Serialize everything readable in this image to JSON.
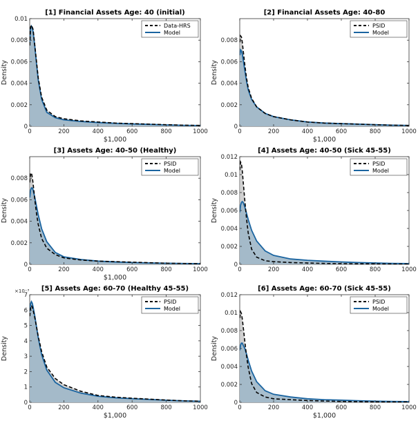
{
  "colors": {
    "data_line": "#000000",
    "data_fill": "#c8c8c8",
    "model_line": "#1a64a0",
    "model_fill": "#9fb7c8",
    "axis": "#333333"
  },
  "chart_data": [
    {
      "type": "area",
      "title": "[1] Financial Assets Age: 40 (initial)",
      "xlabel": "$1,000",
      "ylabel": "Density",
      "xlim": [
        0,
        1000
      ],
      "ylim": [
        0,
        0.01
      ],
      "xticks": [
        0,
        200,
        400,
        600,
        800,
        1000
      ],
      "yticks": [
        0,
        0.002,
        0.004,
        0.006,
        0.008,
        0.01
      ],
      "ytick_labels": [
        "0",
        "0.002",
        "0.004",
        "0.006",
        "0.008",
        "0.01"
      ],
      "exponent_label": "",
      "legend_position": "top-right",
      "grid": false,
      "series": [
        {
          "name": "Data-HRS",
          "style": "dashed",
          "x": [
            0,
            5,
            10,
            15,
            20,
            30,
            40,
            50,
            70,
            100,
            150,
            200,
            300,
            400,
            500,
            600,
            700,
            800,
            900,
            1000
          ],
          "y": [
            0.0075,
            0.0092,
            0.0094,
            0.0092,
            0.009,
            0.0075,
            0.006,
            0.0045,
            0.0027,
            0.0015,
            0.0009,
            0.0007,
            0.0005,
            0.0004,
            0.0003,
            0.00025,
            0.0002,
            0.00015,
            0.0001,
            8e-05
          ]
        },
        {
          "name": "Model",
          "style": "solid",
          "x": [
            0,
            5,
            10,
            15,
            20,
            30,
            40,
            50,
            70,
            100,
            150,
            200,
            300,
            400,
            500,
            600,
            700,
            800,
            900,
            1000
          ],
          "y": [
            0.0078,
            0.0091,
            0.0093,
            0.0091,
            0.0088,
            0.0074,
            0.0058,
            0.0043,
            0.0025,
            0.0013,
            0.0008,
            0.0006,
            0.00045,
            0.00035,
            0.00028,
            0.00022,
            0.00018,
            0.00013,
            9e-05,
            7e-05
          ]
        }
      ]
    },
    {
      "type": "area",
      "title": "[2] Financial Assets Age: 40-80",
      "xlabel": "$1,000",
      "ylabel": "Density",
      "xlim": [
        0,
        1000
      ],
      "ylim": [
        0,
        0.01
      ],
      "xticks": [
        0,
        200,
        400,
        600,
        800,
        1000
      ],
      "yticks": [
        0,
        0.002,
        0.004,
        0.006,
        0.008
      ],
      "ytick_labels": [
        "0",
        "0.002",
        "0.004",
        "0.006",
        "0.008"
      ],
      "exponent_label": "",
      "legend_position": "top-right",
      "grid": false,
      "series": [
        {
          "name": "PSID",
          "style": "dashed",
          "x": [
            0,
            5,
            10,
            15,
            20,
            30,
            40,
            50,
            70,
            100,
            150,
            200,
            300,
            400,
            500,
            600,
            700,
            800,
            900,
            1000
          ],
          "y": [
            0.0078,
            0.0084,
            0.0083,
            0.0078,
            0.0071,
            0.0057,
            0.0045,
            0.0036,
            0.0026,
            0.0018,
            0.0012,
            0.0009,
            0.0006,
            0.0004,
            0.0003,
            0.00025,
            0.0002,
            0.00015,
            0.0001,
            8e-05
          ]
        },
        {
          "name": "Model",
          "style": "solid",
          "x": [
            0,
            5,
            10,
            15,
            20,
            30,
            40,
            50,
            70,
            100,
            150,
            200,
            300,
            400,
            500,
            600,
            700,
            800,
            900,
            1000
          ],
          "y": [
            0.0066,
            0.0071,
            0.007,
            0.0067,
            0.0062,
            0.0052,
            0.0042,
            0.0034,
            0.0025,
            0.0018,
            0.0012,
            0.0009,
            0.0006,
            0.0004,
            0.0003,
            0.00025,
            0.0002,
            0.00015,
            0.0001,
            8e-05
          ]
        }
      ]
    },
    {
      "type": "area",
      "title": "[3] Assets Age: 40-50 (Healthy)",
      "xlabel": "$1,000",
      "ylabel": "Density",
      "xlim": [
        0,
        1000
      ],
      "ylim": [
        0,
        0.01
      ],
      "xticks": [
        0,
        200,
        400,
        600,
        800,
        1000
      ],
      "yticks": [
        0,
        0.002,
        0.004,
        0.006,
        0.008
      ],
      "ytick_labels": [
        "0",
        "0.002",
        "0.004",
        "0.006",
        "0.008"
      ],
      "exponent_label": "",
      "legend_position": "top-right",
      "grid": false,
      "series": [
        {
          "name": "PSID",
          "style": "dashed",
          "x": [
            0,
            5,
            10,
            15,
            20,
            30,
            40,
            50,
            70,
            100,
            150,
            200,
            300,
            400,
            500,
            600,
            700,
            800,
            900,
            1000
          ],
          "y": [
            0.0076,
            0.0084,
            0.0085,
            0.0081,
            0.0075,
            0.006,
            0.0047,
            0.0037,
            0.0024,
            0.0015,
            0.0009,
            0.0006,
            0.0004,
            0.0003,
            0.00025,
            0.0002,
            0.00015,
            0.0001,
            8e-05,
            6e-05
          ]
        },
        {
          "name": "Model",
          "style": "solid",
          "x": [
            0,
            5,
            10,
            15,
            20,
            30,
            40,
            50,
            70,
            100,
            150,
            200,
            300,
            400,
            500,
            600,
            700,
            800,
            900,
            1000
          ],
          "y": [
            0.0062,
            0.0069,
            0.0071,
            0.0071,
            0.0069,
            0.0062,
            0.0054,
            0.0046,
            0.0033,
            0.0021,
            0.0011,
            0.0007,
            0.00045,
            0.0003,
            0.00022,
            0.00017,
            0.00013,
            0.0001,
            8e-05,
            6e-05
          ]
        }
      ]
    },
    {
      "type": "area",
      "title": "[4] Assets Age: 40-50 (Sick  45-55)",
      "xlabel": "",
      "ylabel": "Density",
      "xlim": [
        0,
        1000
      ],
      "ylim": [
        0,
        0.012
      ],
      "xticks": [
        0,
        200,
        400,
        600,
        800,
        1000
      ],
      "yticks": [
        0,
        0.002,
        0.004,
        0.006,
        0.008,
        0.01,
        0.012
      ],
      "ytick_labels": [
        "0",
        "0.002",
        "0.004",
        "0.006",
        "0.008",
        "0.01",
        "0.012"
      ],
      "exponent_label": "",
      "legend_position": "top-right",
      "grid": false,
      "series": [
        {
          "name": "PSID",
          "style": "dashed",
          "x": [
            0,
            5,
            10,
            15,
            20,
            30,
            40,
            50,
            70,
            100,
            150,
            200,
            300,
            400,
            500,
            600,
            700,
            800,
            900,
            1000
          ],
          "y": [
            0.0105,
            0.0114,
            0.0112,
            0.0104,
            0.0093,
            0.0071,
            0.0051,
            0.0035,
            0.0017,
            0.0008,
            0.0004,
            0.0003,
            0.0002,
            0.00015,
            0.0001,
            8e-05,
            6e-05,
            5e-05,
            4e-05,
            3e-05
          ]
        },
        {
          "name": "Model",
          "style": "solid",
          "x": [
            0,
            5,
            10,
            15,
            20,
            30,
            40,
            50,
            70,
            100,
            150,
            200,
            300,
            400,
            500,
            600,
            700,
            800,
            900,
            1000
          ],
          "y": [
            0.0058,
            0.0066,
            0.0069,
            0.007,
            0.0069,
            0.0064,
            0.0057,
            0.005,
            0.0038,
            0.0026,
            0.0015,
            0.001,
            0.0006,
            0.00045,
            0.00035,
            0.00027,
            0.0002,
            0.00015,
            0.0001,
            8e-05
          ]
        }
      ]
    },
    {
      "type": "area",
      "title": "[5] Assets Age: 60-70 (Healthy 45-55)",
      "xlabel": "$1,000",
      "ylabel": "Density",
      "xlim": [
        0,
        1000
      ],
      "ylim": [
        0,
        7
      ],
      "xticks": [
        0,
        200,
        400,
        600,
        800,
        1000
      ],
      "yticks": [
        0,
        1,
        2,
        3,
        4,
        5,
        6,
        7
      ],
      "ytick_labels": [
        "0",
        "1",
        "2",
        "3",
        "4",
        "5",
        "6",
        "7"
      ],
      "exponent_label": "×10⁻³",
      "legend_position": "top-right",
      "grid": false,
      "series": [
        {
          "name": "PSID",
          "style": "dashed",
          "x": [
            0,
            5,
            10,
            15,
            20,
            30,
            40,
            50,
            70,
            100,
            150,
            200,
            300,
            400,
            500,
            600,
            700,
            800,
            900,
            1000
          ],
          "y": [
            5.6,
            6.1,
            6.3,
            6.2,
            6.0,
            5.5,
            4.9,
            4.3,
            3.3,
            2.3,
            1.55,
            1.15,
            0.72,
            0.45,
            0.34,
            0.27,
            0.21,
            0.15,
            0.1,
            0.07
          ]
        },
        {
          "name": "Model",
          "style": "solid",
          "x": [
            0,
            5,
            10,
            15,
            20,
            30,
            40,
            50,
            70,
            100,
            150,
            200,
            300,
            400,
            500,
            600,
            700,
            800,
            900,
            1000
          ],
          "y": [
            5.9,
            6.4,
            6.55,
            6.45,
            6.2,
            5.6,
            4.9,
            4.2,
            3.1,
            2.1,
            1.3,
            0.95,
            0.6,
            0.4,
            0.3,
            0.24,
            0.19,
            0.14,
            0.1,
            0.07
          ]
        }
      ]
    },
    {
      "type": "area",
      "title": "[6] Assets Age: 60-70 (Sick 45-55)",
      "xlabel": "$1,000",
      "ylabel": "Density",
      "xlim": [
        0,
        1000
      ],
      "ylim": [
        0,
        0.012
      ],
      "xticks": [
        0,
        200,
        400,
        600,
        800,
        1000
      ],
      "yticks": [
        0,
        0.002,
        0.004,
        0.006,
        0.008,
        0.01,
        0.012
      ],
      "ytick_labels": [
        "0",
        "0.002",
        "0.004",
        "0.006",
        "0.008",
        "0.01",
        "0.012"
      ],
      "exponent_label": "",
      "legend_position": "top-right",
      "grid": false,
      "series": [
        {
          "name": "PSID",
          "style": "dashed",
          "x": [
            0,
            5,
            10,
            15,
            20,
            30,
            40,
            50,
            70,
            100,
            150,
            200,
            300,
            400,
            500,
            600,
            700,
            800,
            900,
            1000
          ],
          "y": [
            0.0094,
            0.0101,
            0.0099,
            0.0093,
            0.0085,
            0.0068,
            0.0052,
            0.0039,
            0.0021,
            0.0011,
            0.0006,
            0.0004,
            0.0003,
            0.0002,
            0.00015,
            0.0001,
            8e-05,
            6e-05,
            5e-05,
            4e-05
          ]
        },
        {
          "name": "Model",
          "style": "solid",
          "x": [
            0,
            5,
            10,
            15,
            20,
            30,
            40,
            50,
            70,
            100,
            150,
            200,
            300,
            400,
            500,
            600,
            700,
            800,
            900,
            1000
          ],
          "y": [
            0.0058,
            0.0064,
            0.0066,
            0.0066,
            0.0064,
            0.006,
            0.0054,
            0.0047,
            0.0035,
            0.0023,
            0.0013,
            0.0009,
            0.0006,
            0.0004,
            0.0003,
            0.00025,
            0.00018,
            0.00013,
            0.0001,
            8e-05
          ]
        }
      ]
    }
  ]
}
